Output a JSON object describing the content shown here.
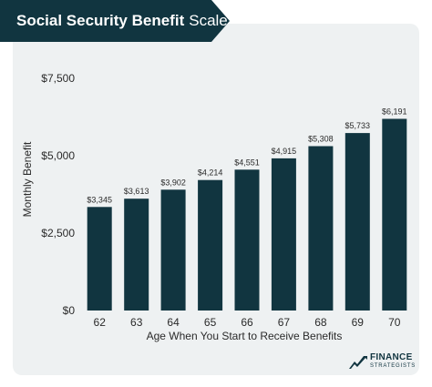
{
  "title": {
    "bold": "Social Security Benefit",
    "light": "Scale"
  },
  "chart_data": {
    "type": "bar",
    "categories": [
      "62",
      "63",
      "64",
      "65",
      "66",
      "67",
      "68",
      "69",
      "70"
    ],
    "values": [
      3345,
      3613,
      3902,
      4214,
      4551,
      4915,
      5308,
      5733,
      6191
    ],
    "value_labels": [
      "$3,345",
      "$3,613",
      "$3,902",
      "$4,214",
      "$4,551",
      "$4,915",
      "$5,308",
      "$5,733",
      "$6,191"
    ],
    "ylabel": "Monthly Benefit",
    "xlabel": "Age When You Start to Receive Benefits",
    "ylim": [
      0,
      7500
    ],
    "yticks": [
      0,
      2500,
      5000,
      7500
    ],
    "ytick_labels": [
      "$0",
      "$2,500",
      "$5,000",
      "$7,500"
    ],
    "bar_color": "#113540",
    "grid": false
  },
  "logo": {
    "line1": "FINANCE",
    "line2": "STRATEGISTS"
  }
}
